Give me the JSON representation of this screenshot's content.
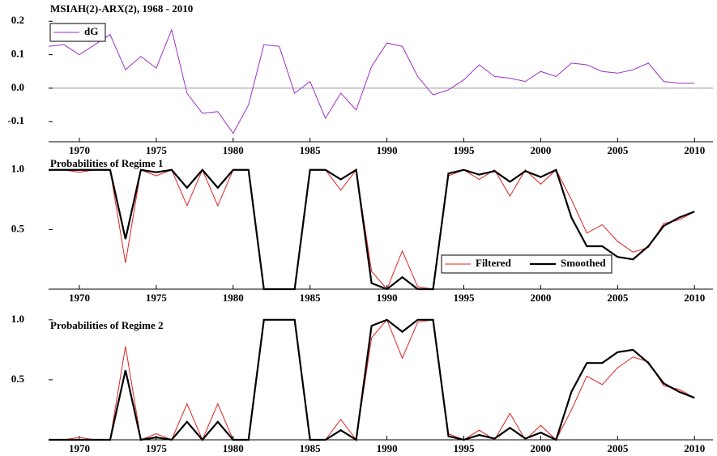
{
  "chart_data": [
    {
      "type": "line",
      "title": "MSIAH(2)-ARX(2), 1968 - 2010",
      "x": [
        1968,
        1969,
        1970,
        1971,
        1972,
        1973,
        1974,
        1975,
        1976,
        1977,
        1978,
        1979,
        1980,
        1981,
        1982,
        1983,
        1984,
        1985,
        1986,
        1987,
        1988,
        1989,
        1990,
        1991,
        1992,
        1993,
        1994,
        1995,
        1996,
        1997,
        1998,
        1999,
        2000,
        2001,
        2002,
        2003,
        2004,
        2005,
        2006,
        2007,
        2008,
        2009,
        2010
      ],
      "series": [
        {
          "name": "dG",
          "color": "#9b30c8",
          "values": [
            0.125,
            0.13,
            0.1,
            0.13,
            0.16,
            0.055,
            0.095,
            0.06,
            0.175,
            -0.015,
            -0.075,
            -0.07,
            -0.135,
            -0.05,
            0.13,
            0.125,
            -0.015,
            0.02,
            -0.09,
            -0.015,
            -0.065,
            0.065,
            0.135,
            0.125,
            0.035,
            -0.02,
            -0.005,
            0.025,
            0.07,
            0.035,
            0.03,
            0.02,
            0.05,
            0.035,
            0.075,
            0.07,
            0.05,
            0.045,
            0.055,
            0.075,
            0.02,
            0.015,
            0.015
          ]
        }
      ],
      "xlim": [
        1968,
        2011.2
      ],
      "xticks": [
        1970,
        1975,
        1980,
        1985,
        1990,
        1995,
        2000,
        2005,
        2010
      ],
      "ylim": [
        -0.16,
        0.22
      ],
      "yticks": [
        -0.1,
        {
          "value": 0,
          "label": "0.0"
        },
        0.1,
        0.2
      ],
      "zero_line": true,
      "legend": "upper left"
    },
    {
      "type": "line",
      "title": "Probabilities of Regime 1",
      "x": [
        1968,
        1969,
        1970,
        1971,
        1972,
        1973,
        1974,
        1975,
        1976,
        1977,
        1978,
        1979,
        1980,
        1981,
        1982,
        1983,
        1984,
        1985,
        1986,
        1987,
        1988,
        1989,
        1990,
        1991,
        1992,
        1993,
        1994,
        1995,
        1996,
        1997,
        1998,
        1999,
        2000,
        2001,
        2002,
        2003,
        2004,
        2005,
        2006,
        2007,
        2008,
        2009,
        2010
      ],
      "series": [
        {
          "name": "Filtered",
          "color": "#e02020",
          "values": [
            1,
            1,
            0.98,
            1,
            1,
            0.22,
            1,
            0.95,
            1,
            0.7,
            1,
            0.7,
            1,
            1,
            0,
            0,
            0,
            1,
            1,
            0.83,
            1,
            0.15,
            0,
            0.32,
            0.02,
            0,
            0.95,
            1,
            0.92,
            1,
            0.78,
            1,
            0.88,
            1,
            0.75,
            0.47,
            0.54,
            0.4,
            0.31,
            0.35,
            0.55,
            0.58,
            0.65
          ]
        },
        {
          "name": "Smoothed",
          "color": "#000000",
          "values": [
            1,
            1,
            1,
            1,
            1,
            0.42,
            1,
            0.98,
            1,
            0.85,
            1,
            0.85,
            1,
            1,
            0,
            0,
            0,
            1,
            1,
            0.92,
            1,
            0.05,
            0,
            0.1,
            0,
            0,
            0.97,
            1,
            0.96,
            0.99,
            0.9,
            0.99,
            0.94,
            1,
            0.6,
            0.36,
            0.36,
            0.27,
            0.25,
            0.36,
            0.53,
            0.6,
            0.65
          ]
        }
      ],
      "xlim": [
        1968,
        2011.2
      ],
      "xticks": [
        1970,
        1975,
        1980,
        1985,
        1990,
        1995,
        2000,
        2005,
        2010
      ],
      "ylim": [
        0,
        1.1
      ],
      "yticks": [
        0.5,
        {
          "value": 1,
          "label": "1.0"
        }
      ],
      "legend": "lower right"
    },
    {
      "type": "line",
      "title": "Probabilities of Regime 2",
      "x": [
        1968,
        1969,
        1970,
        1971,
        1972,
        1973,
        1974,
        1975,
        1976,
        1977,
        1978,
        1979,
        1980,
        1981,
        1982,
        1983,
        1984,
        1985,
        1986,
        1987,
        1988,
        1989,
        1990,
        1991,
        1992,
        1993,
        1994,
        1995,
        1996,
        1997,
        1998,
        1999,
        2000,
        2001,
        2002,
        2003,
        2004,
        2005,
        2006,
        2007,
        2008,
        2009,
        2010
      ],
      "series": [
        {
          "color": "#e02020",
          "values": [
            0,
            0,
            0.02,
            0,
            0,
            0.78,
            0,
            0.05,
            0,
            0.3,
            0,
            0.3,
            0,
            0,
            1,
            1,
            1,
            0,
            0,
            0.17,
            0,
            0.85,
            1,
            0.68,
            0.98,
            1,
            0.05,
            0,
            0.08,
            0,
            0.22,
            0,
            0.12,
            0,
            0.25,
            0.53,
            0.46,
            0.6,
            0.69,
            0.65,
            0.45,
            0.42,
            0.35
          ]
        },
        {
          "color": "#000000",
          "values": [
            0,
            0,
            0,
            0,
            0,
            0.58,
            0,
            0.02,
            0,
            0.15,
            0,
            0.15,
            0,
            0,
            1,
            1,
            1,
            0,
            0,
            0.08,
            0,
            0.95,
            1,
            0.9,
            1,
            1,
            0.03,
            0,
            0.04,
            0.01,
            0.1,
            0.01,
            0.06,
            0,
            0.4,
            0.64,
            0.64,
            0.73,
            0.75,
            0.64,
            0.47,
            0.4,
            0.35
          ]
        }
      ],
      "xlim": [
        1968,
        2011.2
      ],
      "xticks": [
        1970,
        1975,
        1980,
        1985,
        1990,
        1995,
        2000,
        2005,
        2010
      ],
      "ylim": [
        0,
        1.1
      ],
      "yticks": [
        0.5,
        {
          "value": 1,
          "label": "1.0"
        }
      ]
    }
  ]
}
